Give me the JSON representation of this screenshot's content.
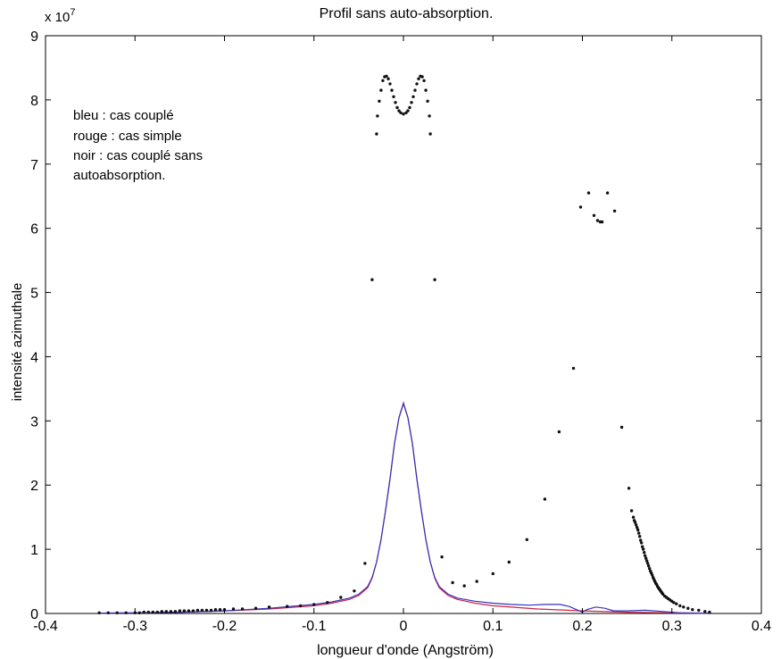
{
  "chart_data": {
    "type": "scatter",
    "title": "Profil sans auto-absorption.",
    "xlabel": "longueur d'onde (Angström)",
    "ylabel": "intensité azimuthale",
    "exponent_label": "x 10",
    "exponent_power": "7",
    "xlim": [
      -0.4,
      0.4
    ],
    "ylim": [
      0,
      9
    ],
    "xticks": [
      "-0.4",
      "-0.3",
      "-0.2",
      "-0.1",
      "0",
      "0.1",
      "0.2",
      "0.3",
      "0.4"
    ],
    "yticks": [
      "0",
      "1",
      "2",
      "3",
      "4",
      "5",
      "6",
      "7",
      "8",
      "9"
    ],
    "legend_lines": [
      "bleu : cas couplé",
      "rouge : cas simple",
      "noir : cas couplé sans",
      "autoabsorption."
    ],
    "legend_position": "top-left",
    "grid": false,
    "series": [
      {
        "key": "red",
        "style": "line",
        "color": "#cc2244",
        "x": [
          -0.34,
          -0.3,
          -0.25,
          -0.2,
          -0.15,
          -0.1,
          -0.08,
          -0.06,
          -0.05,
          -0.04,
          -0.035,
          -0.03,
          -0.025,
          -0.02,
          -0.015,
          -0.01,
          -0.005,
          0,
          0.005,
          0.01,
          0.015,
          0.02,
          0.025,
          0.03,
          0.035,
          0.04,
          0.05,
          0.06,
          0.08,
          0.1,
          0.15,
          0.2,
          0.25,
          0.3,
          0.34
        ],
        "y": [
          0.005,
          0.01,
          0.02,
          0.04,
          0.07,
          0.12,
          0.16,
          0.22,
          0.28,
          0.4,
          0.55,
          0.8,
          1.15,
          1.6,
          2.1,
          2.65,
          3.05,
          3.28,
          3.05,
          2.65,
          2.1,
          1.6,
          1.15,
          0.8,
          0.55,
          0.4,
          0.28,
          0.22,
          0.16,
          0.12,
          0.07,
          0.04,
          0.02,
          0.01,
          0.005
        ]
      },
      {
        "key": "blue",
        "style": "line",
        "color": "#3333bb",
        "x": [
          -0.34,
          -0.3,
          -0.25,
          -0.2,
          -0.15,
          -0.1,
          -0.08,
          -0.06,
          -0.05,
          -0.04,
          -0.035,
          -0.03,
          -0.025,
          -0.02,
          -0.015,
          -0.01,
          -0.005,
          0,
          0.005,
          0.01,
          0.015,
          0.02,
          0.025,
          0.03,
          0.035,
          0.04,
          0.05,
          0.06,
          0.08,
          0.1,
          0.12,
          0.14,
          0.16,
          0.175,
          0.185,
          0.195,
          0.2,
          0.205,
          0.215,
          0.225,
          0.235,
          0.25,
          0.27,
          0.29,
          0.31,
          0.34
        ],
        "y": [
          0.005,
          0.01,
          0.02,
          0.04,
          0.08,
          0.14,
          0.18,
          0.24,
          0.3,
          0.42,
          0.56,
          0.8,
          1.15,
          1.6,
          2.1,
          2.65,
          3.05,
          3.27,
          3.05,
          2.65,
          2.1,
          1.6,
          1.15,
          0.8,
          0.56,
          0.42,
          0.3,
          0.24,
          0.19,
          0.16,
          0.14,
          0.13,
          0.14,
          0.14,
          0.11,
          0.05,
          0.02,
          0.06,
          0.1,
          0.08,
          0.04,
          0.04,
          0.05,
          0.03,
          0.01,
          0.0
        ]
      },
      {
        "key": "black",
        "style": "points",
        "color": "#111111",
        "x": [
          -0.34,
          -0.33,
          -0.32,
          -0.31,
          -0.3,
          -0.295,
          -0.29,
          -0.285,
          -0.28,
          -0.275,
          -0.27,
          -0.265,
          -0.26,
          -0.255,
          -0.25,
          -0.245,
          -0.24,
          -0.235,
          -0.23,
          -0.225,
          -0.22,
          -0.215,
          -0.21,
          -0.205,
          -0.2,
          -0.19,
          -0.18,
          -0.165,
          -0.15,
          -0.13,
          -0.115,
          -0.1,
          -0.085,
          -0.07,
          -0.055,
          -0.043,
          -0.035,
          -0.03,
          -0.029,
          -0.027,
          -0.025,
          -0.023,
          -0.021,
          -0.019,
          -0.017,
          -0.015,
          -0.013,
          -0.011,
          -0.009,
          -0.007,
          -0.005,
          -0.003,
          0.0,
          0.003,
          0.005,
          0.007,
          0.009,
          0.011,
          0.013,
          0.015,
          0.017,
          0.019,
          0.021,
          0.023,
          0.025,
          0.027,
          0.029,
          0.03,
          0.035,
          0.043,
          0.055,
          0.068,
          0.082,
          0.1,
          0.118,
          0.138,
          0.158,
          0.174,
          0.19,
          0.198,
          0.207,
          0.213,
          0.217,
          0.22,
          0.222,
          0.228,
          0.236,
          0.244,
          0.252,
          0.255,
          0.257,
          0.258,
          0.259,
          0.26,
          0.261,
          0.262,
          0.263,
          0.264,
          0.265,
          0.266,
          0.267,
          0.268,
          0.269,
          0.27,
          0.271,
          0.272,
          0.273,
          0.274,
          0.275,
          0.276,
          0.277,
          0.278,
          0.279,
          0.28,
          0.281,
          0.282,
          0.283,
          0.284,
          0.285,
          0.286,
          0.287,
          0.288,
          0.289,
          0.29,
          0.292,
          0.294,
          0.296,
          0.298,
          0.3,
          0.302,
          0.305,
          0.309,
          0.313,
          0.318,
          0.323,
          0.33,
          0.337,
          0.342
        ],
        "y": [
          0.01,
          0.01,
          0.01,
          0.01,
          0.01,
          0.01,
          0.02,
          0.02,
          0.02,
          0.02,
          0.03,
          0.03,
          0.03,
          0.03,
          0.04,
          0.04,
          0.04,
          0.04,
          0.05,
          0.05,
          0.05,
          0.05,
          0.06,
          0.06,
          0.06,
          0.07,
          0.07,
          0.08,
          0.1,
          0.11,
          0.12,
          0.14,
          0.17,
          0.25,
          0.35,
          0.78,
          5.2,
          7.47,
          7.75,
          7.98,
          8.15,
          8.3,
          8.36,
          8.37,
          8.33,
          8.25,
          8.15,
          8.05,
          7.96,
          7.88,
          7.83,
          7.8,
          7.78,
          7.8,
          7.83,
          7.88,
          7.96,
          8.05,
          8.15,
          8.25,
          8.33,
          8.37,
          8.36,
          8.3,
          8.15,
          7.98,
          7.75,
          7.47,
          5.2,
          0.88,
          0.48,
          0.43,
          0.5,
          0.62,
          0.8,
          1.15,
          1.78,
          2.83,
          3.82,
          6.33,
          6.55,
          6.2,
          6.12,
          6.1,
          6.1,
          6.55,
          6.27,
          2.9,
          1.95,
          1.6,
          1.5,
          1.45,
          1.42,
          1.38,
          1.34,
          1.3,
          1.25,
          1.2,
          1.14,
          1.1,
          1.04,
          1.0,
          0.95,
          0.9,
          0.86,
          0.82,
          0.78,
          0.74,
          0.7,
          0.66,
          0.63,
          0.6,
          0.56,
          0.53,
          0.5,
          0.47,
          0.45,
          0.42,
          0.4,
          0.38,
          0.36,
          0.34,
          0.32,
          0.3,
          0.27,
          0.25,
          0.23,
          0.21,
          0.19,
          0.17,
          0.15,
          0.12,
          0.1,
          0.08,
          0.06,
          0.05,
          0.03,
          0.02
        ]
      }
    ]
  }
}
